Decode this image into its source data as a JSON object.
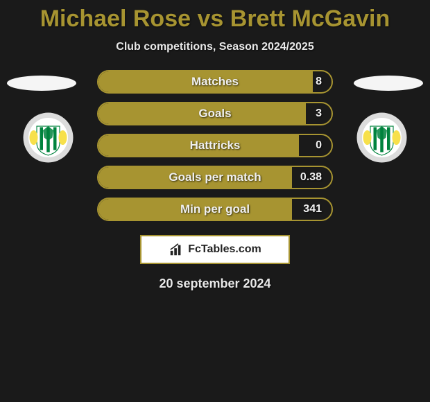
{
  "title": {
    "player1": "Michael Rose",
    "vs": "vs",
    "player2": "Brett McGavin",
    "color": "#a79431"
  },
  "subtitle": "Club competitions, Season 2024/2025",
  "colors": {
    "accent": "#a79431",
    "bar_fill": "#a79431",
    "bar_border": "#a79431",
    "background": "#1a1a1a",
    "text_light": "#f0f0f0",
    "flag_bg": "#f5f5f5",
    "brand_border": "#a79431"
  },
  "stats": [
    {
      "label": "Matches",
      "value": "8",
      "fill_pct": 92
    },
    {
      "label": "Goals",
      "value": "3",
      "fill_pct": 89
    },
    {
      "label": "Hattricks",
      "value": "0",
      "fill_pct": 86
    },
    {
      "label": "Goals per match",
      "value": "0.38",
      "fill_pct": 83
    },
    {
      "label": "Min per goal",
      "value": "341",
      "fill_pct": 83
    }
  ],
  "brand": "FcTables.com",
  "date": "20 september 2024",
  "crest": {
    "outer": "#dcdcdc",
    "outer_text": "#003b1f",
    "shield": "#ffffff",
    "stripes": "#00833d",
    "lion": "#f7e04b"
  }
}
